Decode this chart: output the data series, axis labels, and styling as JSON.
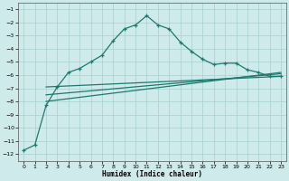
{
  "xlabel": "Humidex (Indice chaleur)",
  "background_color": "#ceeaea",
  "grid_color": "#a8cece",
  "line_color": "#1e7a6e",
  "xlim": [
    -0.5,
    23.5
  ],
  "ylim": [
    -12.5,
    -0.5
  ],
  "xticks": [
    0,
    1,
    2,
    3,
    4,
    5,
    6,
    7,
    8,
    9,
    10,
    11,
    12,
    13,
    14,
    15,
    16,
    17,
    18,
    19,
    20,
    21,
    22,
    23
  ],
  "yticks": [
    -12,
    -11,
    -10,
    -9,
    -8,
    -7,
    -6,
    -5,
    -4,
    -3,
    -2,
    -1
  ],
  "curve1_x": [
    0,
    1,
    2,
    3,
    4,
    5,
    6,
    7,
    8,
    9,
    10,
    11,
    12,
    13,
    14,
    15,
    16,
    17,
    18,
    19,
    20,
    21,
    22,
    23
  ],
  "curve1_y": [
    -11.7,
    -11.3,
    -8.3,
    -6.9,
    -5.8,
    -5.5,
    -5.0,
    -4.5,
    -3.4,
    -2.5,
    -2.2,
    -1.5,
    -2.2,
    -2.5,
    -3.5,
    -4.2,
    -4.8,
    -5.2,
    -5.1,
    -5.1,
    -5.6,
    -5.8,
    -6.1,
    -6.1
  ],
  "line3_x": [
    2,
    23
  ],
  "line3_y": [
    -6.9,
    -6.1
  ],
  "line4_x": [
    2,
    23
  ],
  "line4_y": [
    -7.5,
    -5.9
  ],
  "line5_x": [
    2,
    23
  ],
  "line5_y": [
    -8.0,
    -5.8
  ]
}
